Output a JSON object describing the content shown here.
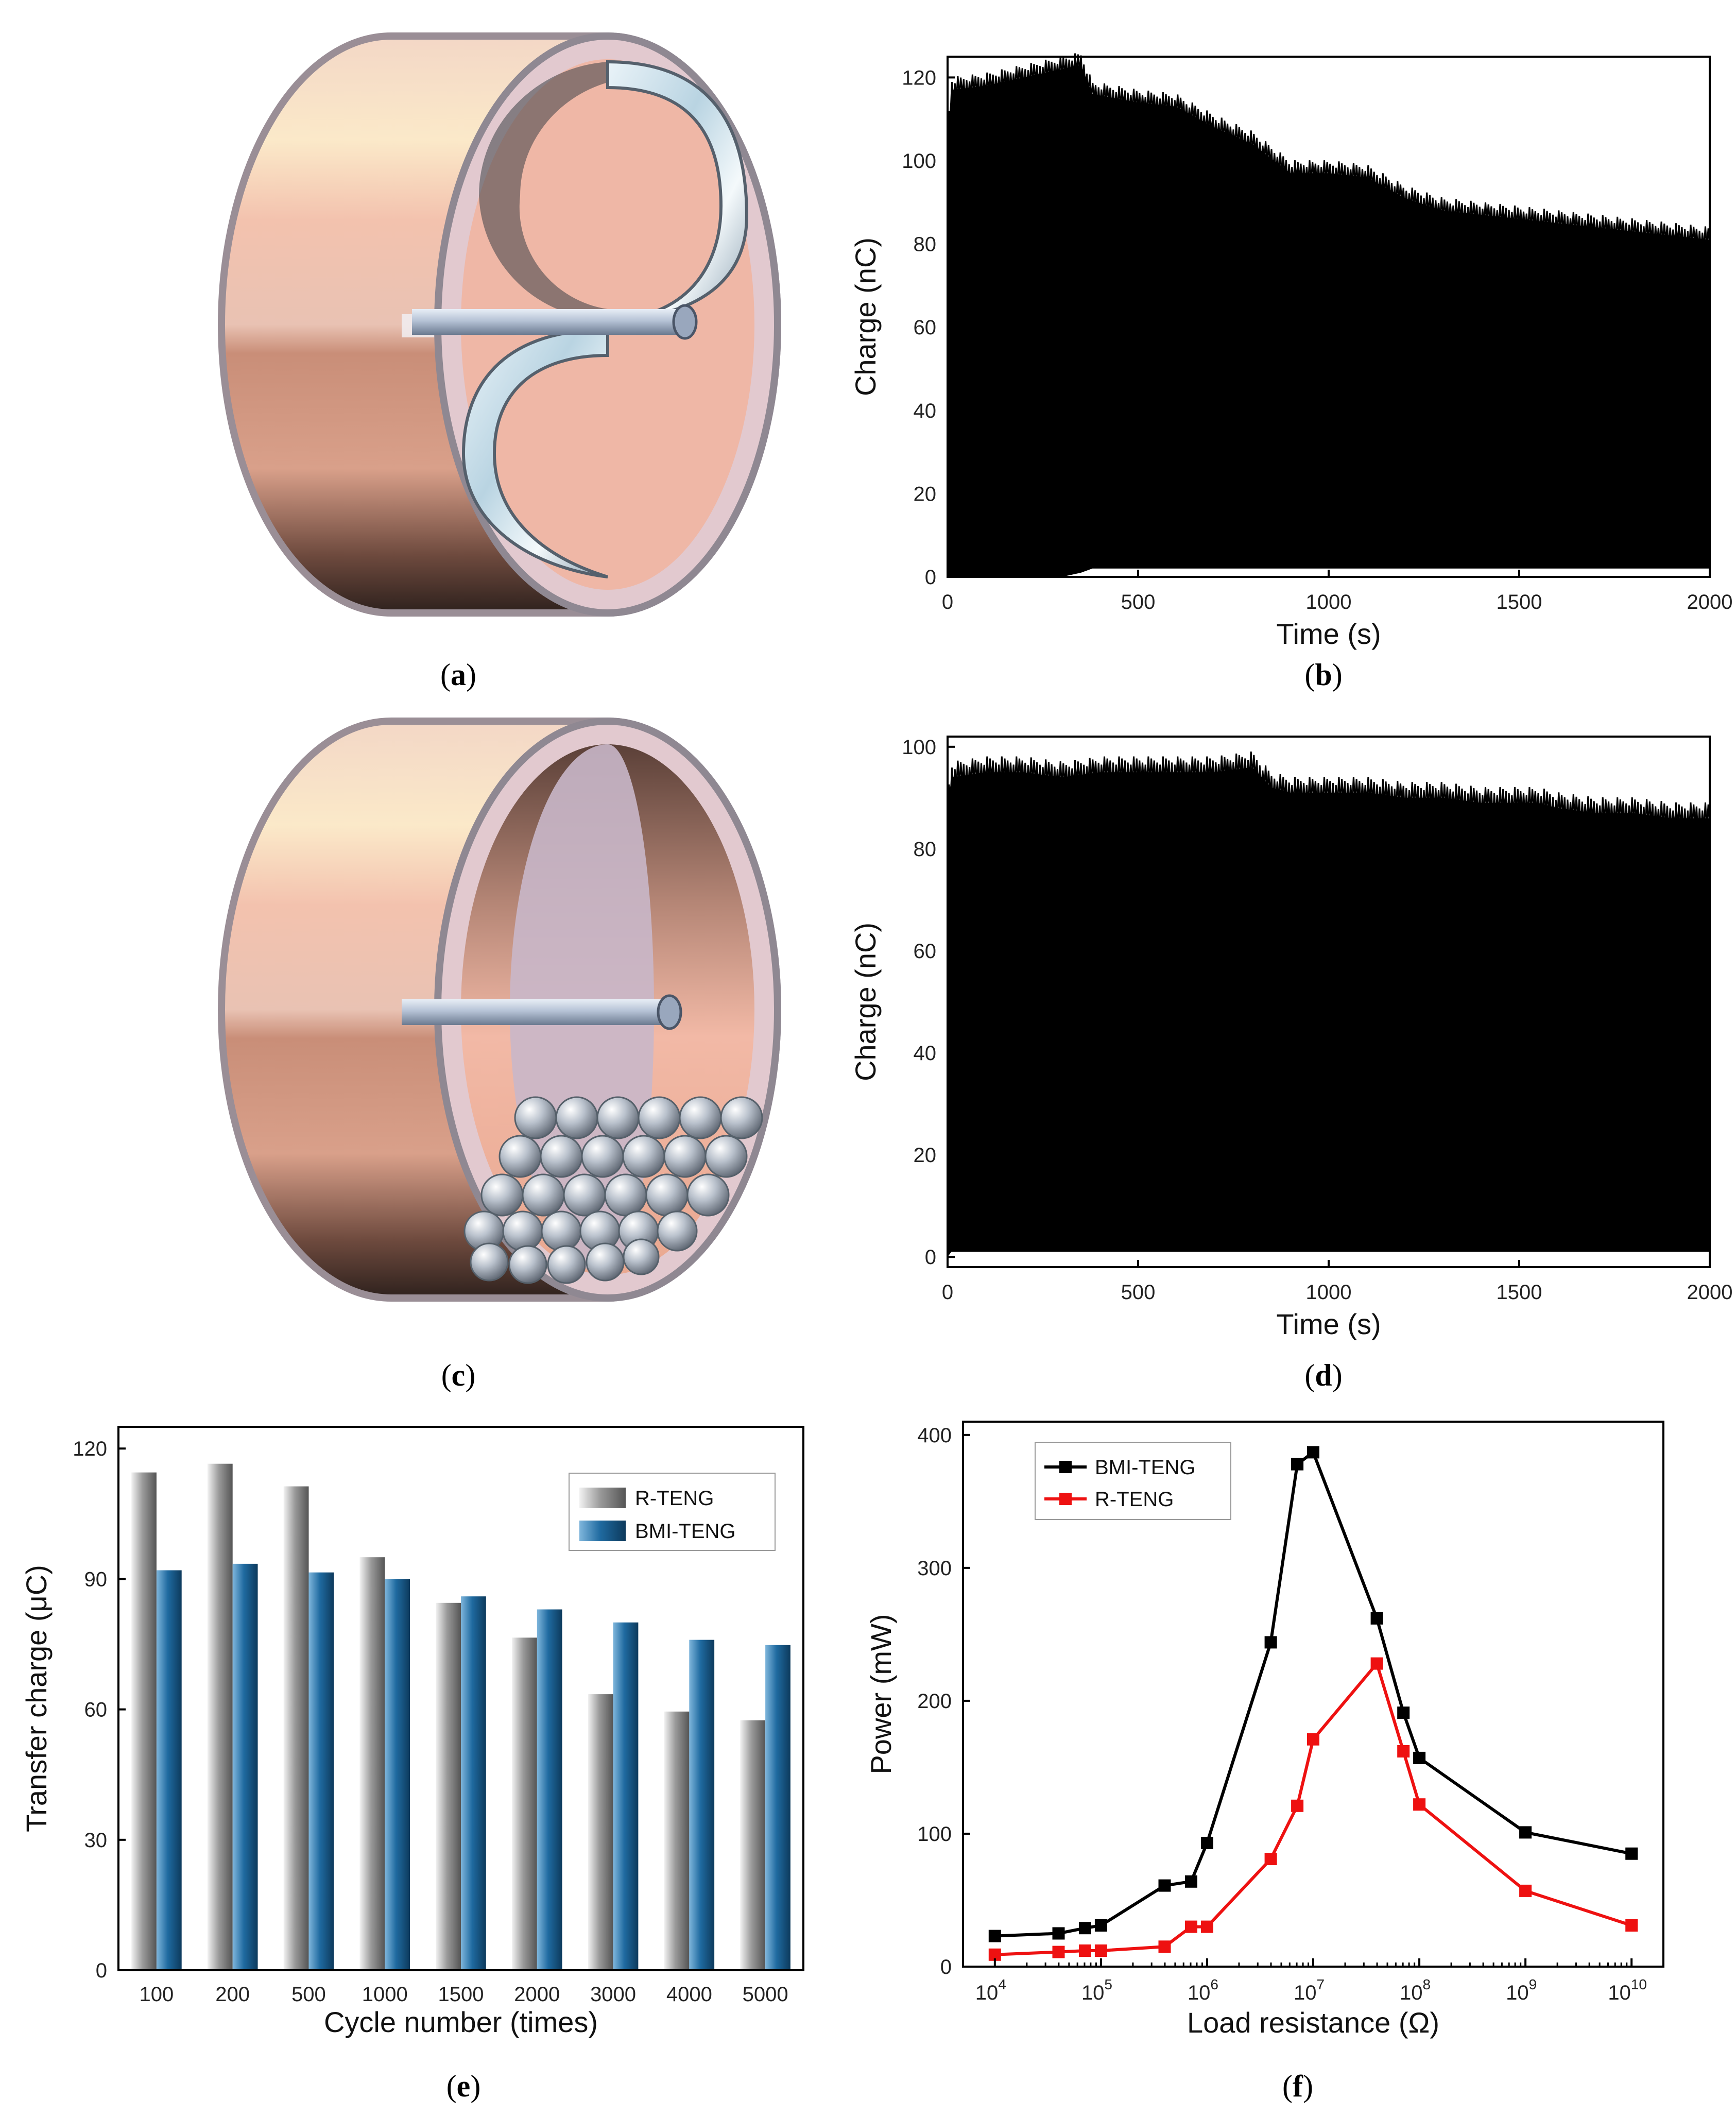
{
  "panel_labels": [
    "a",
    "b",
    "c",
    "d",
    "e",
    "f"
  ],
  "chart_data": [
    {
      "id": "b",
      "type": "area",
      "title": "",
      "xlabel": "Time (s)",
      "ylabel": "Charge (nC)",
      "xlim": [
        0,
        2000
      ],
      "ylim": [
        0,
        125
      ],
      "xticks": [
        0,
        500,
        1000,
        1500,
        2000
      ],
      "yticks": [
        0,
        20,
        40,
        60,
        80,
        100,
        120
      ],
      "x": [
        0,
        10,
        100,
        200,
        300,
        350,
        380,
        500,
        600,
        700,
        800,
        900,
        1000,
        1100,
        1200,
        1300,
        1400,
        1500,
        1600,
        1700,
        1800,
        1900,
        2000
      ],
      "upper": [
        105,
        117,
        118,
        120,
        122,
        123,
        116,
        114,
        113,
        108,
        104,
        97,
        97,
        96,
        91,
        88,
        87,
        86,
        85,
        84,
        83,
        82,
        81
      ],
      "lower": [
        0,
        0,
        0,
        0,
        0,
        1,
        2,
        2,
        2,
        2,
        2,
        2,
        2,
        2,
        2,
        2,
        2,
        2,
        2,
        2,
        2,
        2,
        2
      ]
    },
    {
      "id": "d",
      "type": "area",
      "title": "",
      "xlabel": "Time (s)",
      "ylabel": "Charge (nC)",
      "xlim": [
        0,
        2000
      ],
      "ylim": [
        -2,
        102
      ],
      "xticks": [
        0,
        500,
        1000,
        1500,
        2000
      ],
      "yticks": [
        0,
        20,
        40,
        60,
        80,
        100
      ],
      "x": [
        0,
        10,
        100,
        200,
        300,
        400,
        500,
        600,
        700,
        800,
        850,
        900,
        1000,
        1100,
        1200,
        1300,
        1400,
        1500,
        1550,
        1600,
        1700,
        1800,
        1900,
        2000
      ],
      "upper": [
        88,
        94,
        95,
        95,
        94,
        95,
        95,
        95,
        95,
        96,
        92,
        91,
        91,
        91,
        90,
        90,
        89,
        89,
        89,
        88,
        87,
        87,
        86,
        86
      ],
      "lower": [
        0,
        1,
        1,
        1,
        1,
        1,
        1,
        1,
        1,
        1,
        1,
        1,
        1,
        1,
        1,
        1,
        1,
        1,
        1,
        1,
        1,
        1,
        1,
        1
      ]
    },
    {
      "id": "e",
      "type": "bar",
      "title": "",
      "xlabel": "Cycle number (times)",
      "ylabel": "Transfer charge (μC)",
      "ylim": [
        0,
        125
      ],
      "yticks": [
        0,
        30,
        60,
        90,
        120
      ],
      "categories": [
        "100",
        "200",
        "500",
        "1000",
        "1500",
        "2000",
        "3000",
        "4000",
        "5000"
      ],
      "legend": "top-right",
      "series": [
        {
          "name": "R-TENG",
          "color": "#8c8c8c",
          "values": [
            114.5,
            116.5,
            111.3,
            95.0,
            84.5,
            76.5,
            63.5,
            59.5,
            57.5
          ]
        },
        {
          "name": "BMI-TENG",
          "color": "#1f6aa0",
          "values": [
            92.0,
            93.5,
            91.5,
            90.0,
            86.0,
            83.0,
            80.0,
            76.0,
            74.8
          ]
        }
      ]
    },
    {
      "id": "f",
      "type": "line",
      "title": "",
      "xlabel": "Load resistance (Ω)",
      "ylabel": "Power (mW)",
      "xscale": "log",
      "xlim_exp": [
        3.7,
        10.3
      ],
      "ylim": [
        0,
        410
      ],
      "yticks": [
        0,
        100,
        200,
        300,
        400
      ],
      "xtick_base": "10",
      "xtick_exps": [
        "4",
        "5",
        "6",
        "7",
        "8",
        "9",
        "10"
      ],
      "legend": "top-left",
      "series": [
        {
          "name": "BMI-TENG",
          "color": "#000000",
          "x_exp": [
            4.0,
            4.6,
            4.85,
            5.0,
            5.6,
            5.85,
            6.0,
            6.6,
            6.85,
            7.0,
            7.6,
            7.85,
            8.0,
            9.0,
            10.0
          ],
          "y": [
            23,
            25,
            29,
            31,
            61,
            64,
            93,
            244,
            378,
            387,
            262,
            191,
            157,
            101,
            85
          ]
        },
        {
          "name": "R-TENG",
          "color": "#ee1111",
          "x_exp": [
            4.0,
            4.6,
            4.85,
            5.0,
            5.6,
            5.85,
            6.0,
            6.6,
            6.85,
            7.0,
            7.6,
            7.85,
            8.0,
            9.0,
            10.0
          ],
          "y": [
            9,
            11,
            12,
            12,
            15,
            30,
            30,
            81,
            121,
            171,
            228,
            162,
            122,
            57,
            31
          ]
        }
      ]
    }
  ]
}
